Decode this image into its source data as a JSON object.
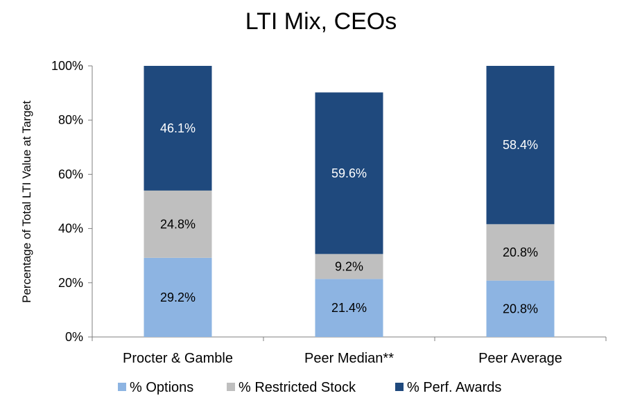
{
  "chart_data": {
    "type": "bar",
    "stacked": true,
    "title": "LTI Mix, CEOs",
    "xlabel": "",
    "ylabel": "Percentage of Total LTI Value at Target",
    "ylim": [
      0,
      100
    ],
    "y_ticks": [
      "0%",
      "20%",
      "40%",
      "60%",
      "80%",
      "100%"
    ],
    "y_tick_values": [
      0,
      20,
      40,
      60,
      80,
      100
    ],
    "categories": [
      "Procter & Gamble",
      "Peer Median**",
      "Peer Average"
    ],
    "series": [
      {
        "name": "% Options",
        "color": "#8DB4E2",
        "label_color": "#000000",
        "values": [
          29.2,
          21.4,
          20.8
        ],
        "labels": [
          "29.2%",
          "21.4%",
          "20.8%"
        ]
      },
      {
        "name": "% Restricted Stock",
        "color": "#BFBFBF",
        "label_color": "#000000",
        "values": [
          24.8,
          9.2,
          20.8
        ],
        "labels": [
          "24.8%",
          "9.2%",
          "20.8%"
        ]
      },
      {
        "name": "% Perf. Awards",
        "color": "#1F497D",
        "label_color": "#ffffff",
        "values": [
          46.1,
          59.6,
          58.4
        ],
        "labels": [
          "46.1%",
          "59.6%",
          "58.4%"
        ]
      }
    ],
    "grid": false,
    "legend_position": "bottom"
  }
}
